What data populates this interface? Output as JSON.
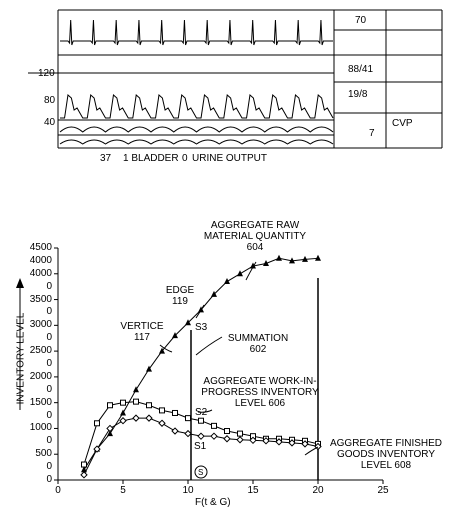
{
  "monitor": {
    "left_scale": [
      "120",
      "80",
      "40"
    ],
    "readings": [
      "70",
      "88/41",
      "19/8",
      "7"
    ],
    "cvp_label": "CVP",
    "bottom_line": [
      "37",
      "1 BLADDER",
      "0",
      "URINE OUTPUT"
    ]
  },
  "graph": {
    "y_axis_label": "INVENTORY LEVEL",
    "x_axis_label": "F(t & G)",
    "y_ticks": [
      "4500",
      "4000",
      "3500",
      "3000",
      "2500",
      "2000",
      "1500",
      "1000",
      "500",
      "0"
    ],
    "y_ticks_minor": [
      "4000",
      "0",
      "0",
      "0",
      "0",
      "0",
      "0",
      "0",
      "0",
      "0"
    ],
    "x_ticks": [
      "0",
      "5",
      "10",
      "15",
      "20",
      "25"
    ],
    "annotations": {
      "raw_material": [
        "AGGREGATE RAW",
        "MATERIAL QUANTITY",
        "604"
      ],
      "edge": [
        "EDGE",
        "119"
      ],
      "vertice": [
        "VERTICE",
        "117"
      ],
      "summation": [
        "SUMMATION",
        "602"
      ],
      "wip": [
        "AGGREGATE WORK-IN-",
        "PROGRESS INVENTORY",
        "LEVEL 606"
      ],
      "finished": [
        "AGGREGATE FINISHED",
        "GOODS INVENTORY",
        "LEVEL 608"
      ],
      "s1": "S1",
      "s2": "S2",
      "s3": "S3",
      "s_circle": "S"
    }
  },
  "chart_data": {
    "type": "line",
    "xlim": [
      0,
      25
    ],
    "ylim": [
      0,
      4500
    ],
    "series": [
      {
        "marker": "triangle",
        "x": [
          2,
          3,
          4,
          5,
          6,
          7,
          8,
          9,
          10,
          11,
          12,
          13,
          14,
          15,
          16,
          17,
          18,
          19,
          20
        ],
        "y": [
          200,
          600,
          900,
          1300,
          1750,
          2150,
          2500,
          2800,
          3050,
          3300,
          3600,
          3850,
          4000,
          4150,
          4200,
          4300,
          4250,
          4280,
          4300
        ]
      },
      {
        "marker": "square",
        "x": [
          2,
          3,
          4,
          5,
          6,
          7,
          8,
          9,
          10,
          11,
          12,
          13,
          14,
          15,
          16,
          17,
          18,
          19,
          20
        ],
        "y": [
          300,
          1100,
          1450,
          1500,
          1520,
          1450,
          1350,
          1300,
          1200,
          1150,
          1050,
          950,
          900,
          850,
          800,
          800,
          780,
          760,
          700
        ]
      },
      {
        "marker": "diamond",
        "x": [
          2,
          3,
          4,
          5,
          6,
          7,
          8,
          9,
          10,
          11,
          12,
          13,
          14,
          15,
          16,
          17,
          18,
          19,
          20
        ],
        "y": [
          100,
          600,
          1000,
          1150,
          1200,
          1200,
          1100,
          950,
          900,
          850,
          850,
          800,
          780,
          770,
          760,
          740,
          720,
          700,
          650
        ]
      }
    ],
    "vlines_x": [
      10.5,
      20
    ]
  }
}
